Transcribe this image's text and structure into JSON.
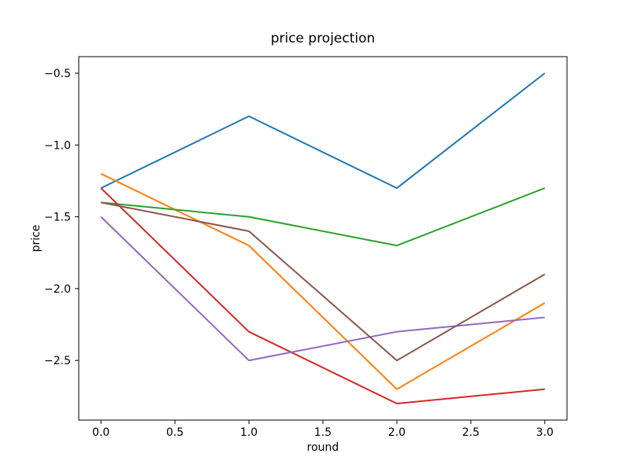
{
  "chart_data": {
    "type": "line",
    "title": "price projection",
    "xlabel": "round",
    "ylabel": "price",
    "x": [
      0,
      1,
      2,
      3
    ],
    "series": [
      {
        "name": "blue-line",
        "color": "#1f77b4",
        "values": [
          -1.3,
          -0.8,
          -1.3,
          -0.5
        ]
      },
      {
        "name": "orange-line",
        "color": "#ff7f0e",
        "values": [
          -1.2,
          -1.7,
          -2.7,
          -2.1
        ]
      },
      {
        "name": "green-line",
        "color": "#2ca02c",
        "values": [
          -1.4,
          -1.5,
          -1.7,
          -1.3
        ]
      },
      {
        "name": "red-line",
        "color": "#d62728",
        "values": [
          -1.3,
          -2.3,
          -2.8,
          -2.7
        ]
      },
      {
        "name": "purple-line",
        "color": "#9467bd",
        "values": [
          -1.5,
          -2.5,
          -2.3,
          -2.2
        ]
      },
      {
        "name": "brown-line",
        "color": "#8c564b",
        "values": [
          -1.4,
          -1.6,
          -2.5,
          -1.9
        ]
      }
    ],
    "xlim": [
      -0.15,
      3.15
    ],
    "ylim": [
      -2.915,
      -0.385
    ],
    "x_ticks": [
      0.0,
      0.5,
      1.0,
      1.5,
      2.0,
      2.5,
      3.0
    ],
    "x_tick_labels": [
      "0.0",
      "0.5",
      "1.0",
      "1.5",
      "2.0",
      "2.5",
      "3.0"
    ],
    "y_ticks": [
      -0.5,
      -1.0,
      -1.5,
      -2.0,
      -2.5
    ],
    "y_tick_labels": [
      "−0.5",
      "−1.0",
      "−1.5",
      "−2.0",
      "−2.5"
    ],
    "grid": false,
    "legend": null
  },
  "colors": {
    "background": "#ffffff",
    "axis": "#000000",
    "text": "#000000"
  }
}
